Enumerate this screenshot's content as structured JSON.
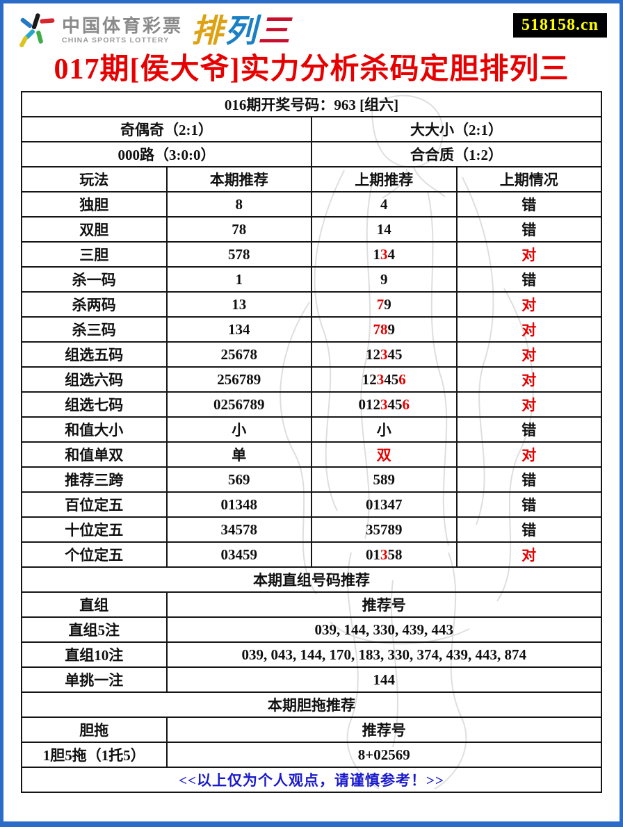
{
  "colors": {
    "accent_red": "#e60000",
    "link_blue": "#1a1acc",
    "frame_blue": "#2b6cc8",
    "badge_bg": "#000000",
    "badge_text": "#ffff00"
  },
  "header": {
    "site": "518158.cn",
    "logo_cn": "中国体育彩票",
    "logo_en": "CHINA SPORTS LOTTERY",
    "product_chars": [
      {
        "t": "排",
        "c": "#dda112"
      },
      {
        "t": "列",
        "c": "#1a7fc4"
      },
      {
        "t": "三",
        "c": "#c8102e"
      }
    ]
  },
  "title": "017期[侯大爷]实力分析杀码定胆排列三",
  "summary": {
    "draw_info": "016期开奖号码：963 [组六]",
    "pairs": [
      {
        "left": "奇偶奇（2:1）",
        "right": "大大小（2:1）"
      },
      {
        "left": "000路（3:0:0）",
        "right": "合合质（1:2）"
      }
    ]
  },
  "main_table": {
    "headers": [
      "玩法",
      "本期推荐",
      "上期推荐",
      "上期情况"
    ],
    "rows": [
      {
        "play": "独胆",
        "current": "8",
        "prev": [
          {
            "t": "4"
          }
        ],
        "result": [
          {
            "t": "错"
          }
        ]
      },
      {
        "play": "双胆",
        "current": "78",
        "prev": [
          {
            "t": "14"
          }
        ],
        "result": [
          {
            "t": "错"
          }
        ]
      },
      {
        "play": "三胆",
        "current": "578",
        "prev": [
          {
            "t": "1"
          },
          {
            "t": "3",
            "c": "#e60000"
          },
          {
            "t": "4"
          }
        ],
        "result": [
          {
            "t": "对",
            "c": "#e60000"
          }
        ]
      },
      {
        "play": "杀一码",
        "current": "1",
        "prev": [
          {
            "t": "9"
          }
        ],
        "result": [
          {
            "t": "错"
          }
        ]
      },
      {
        "play": "杀两码",
        "current": "13",
        "prev": [
          {
            "t": "7",
            "c": "#e60000"
          },
          {
            "t": "9"
          }
        ],
        "result": [
          {
            "t": "对",
            "c": "#e60000"
          }
        ]
      },
      {
        "play": "杀三码",
        "current": "134",
        "prev": [
          {
            "t": "78",
            "c": "#e60000"
          },
          {
            "t": "9"
          }
        ],
        "result": [
          {
            "t": "对",
            "c": "#e60000"
          }
        ]
      },
      {
        "play": "组选五码",
        "current": "25678",
        "prev": [
          {
            "t": "12"
          },
          {
            "t": "3",
            "c": "#e60000"
          },
          {
            "t": "45"
          }
        ],
        "result": [
          {
            "t": "对",
            "c": "#e60000"
          }
        ]
      },
      {
        "play": "组选六码",
        "current": "256789",
        "prev": [
          {
            "t": "12"
          },
          {
            "t": "3",
            "c": "#e60000"
          },
          {
            "t": "45"
          },
          {
            "t": "6",
            "c": "#e60000"
          }
        ],
        "result": [
          {
            "t": "对",
            "c": "#e60000"
          }
        ]
      },
      {
        "play": "组选七码",
        "current": "0256789",
        "prev": [
          {
            "t": "012"
          },
          {
            "t": "3",
            "c": "#e60000"
          },
          {
            "t": "45"
          },
          {
            "t": "6",
            "c": "#e60000"
          }
        ],
        "result": [
          {
            "t": "对",
            "c": "#e60000"
          }
        ]
      },
      {
        "play": "和值大小",
        "current": "小",
        "prev": [
          {
            "t": "小"
          }
        ],
        "result": [
          {
            "t": "错"
          }
        ]
      },
      {
        "play": "和值单双",
        "current": "单",
        "prev": [
          {
            "t": "双",
            "c": "#e60000"
          }
        ],
        "result": [
          {
            "t": "对",
            "c": "#e60000"
          }
        ]
      },
      {
        "play": "推荐三跨",
        "current": "569",
        "prev": [
          {
            "t": "589"
          }
        ],
        "result": [
          {
            "t": "错"
          }
        ]
      },
      {
        "play": "百位定五",
        "current": "01348",
        "prev": [
          {
            "t": "01347"
          }
        ],
        "result": [
          {
            "t": "错"
          }
        ]
      },
      {
        "play": "十位定五",
        "current": "34578",
        "prev": [
          {
            "t": "35789"
          }
        ],
        "result": [
          {
            "t": "错"
          }
        ]
      },
      {
        "play": "个位定五",
        "current": "03459",
        "prev": [
          {
            "t": "01"
          },
          {
            "t": "3",
            "c": "#e60000"
          },
          {
            "t": "58"
          }
        ],
        "result": [
          {
            "t": "对",
            "c": "#e60000"
          }
        ]
      }
    ]
  },
  "direct_section": {
    "header": "本期直组号码推荐",
    "col_label": "直组",
    "col_value": "推荐号",
    "rows": [
      {
        "label": "直组5注",
        "value": "039, 144, 330, 439, 443"
      },
      {
        "label": "直组10注",
        "value": "039, 043, 144, 170, 183, 330, 374, 439, 443, 874"
      },
      {
        "label": "单挑一注",
        "value": "144"
      }
    ]
  },
  "dantuo_section": {
    "header": "本期胆拖推荐",
    "col_label": "胆拖",
    "col_value": "推荐号",
    "rows": [
      {
        "label": "1胆5拖（1托5）",
        "value": "8+02569"
      }
    ]
  },
  "footer_note": "<<以上仅为个人观点，请谨慎参考！>>"
}
